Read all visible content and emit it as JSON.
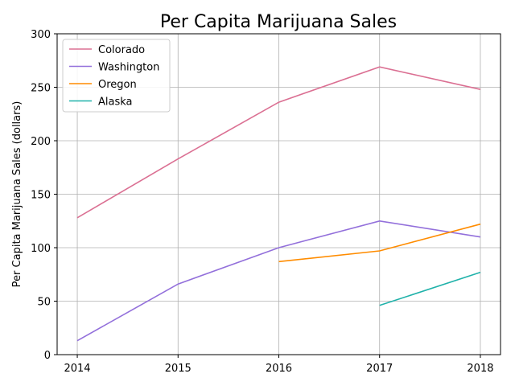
{
  "chart_data": {
    "type": "line",
    "title": "Per Capita Marijuana Sales",
    "xlabel": "",
    "ylabel": "Per Capita Marijuana Sales (dollars)",
    "x": [
      2014,
      2015,
      2016,
      2017,
      2018
    ],
    "xlim": [
      2013.8,
      2018.2
    ],
    "ylim": [
      0,
      300
    ],
    "yticks": [
      0,
      50,
      100,
      150,
      200,
      250,
      300
    ],
    "grid": true,
    "legend_position": "top-left",
    "series": [
      {
        "name": "Colorado",
        "color": "#db7093",
        "values": [
          128,
          183,
          236,
          269,
          248
        ]
      },
      {
        "name": "Washington",
        "color": "#9370db",
        "values": [
          13,
          66,
          100,
          125,
          110
        ]
      },
      {
        "name": "Oregon",
        "color": "#ff8c00",
        "values": [
          null,
          null,
          87,
          97,
          122
        ]
      },
      {
        "name": "Alaska",
        "color": "#20b2aa",
        "values": [
          null,
          null,
          null,
          46,
          77
        ]
      }
    ]
  }
}
